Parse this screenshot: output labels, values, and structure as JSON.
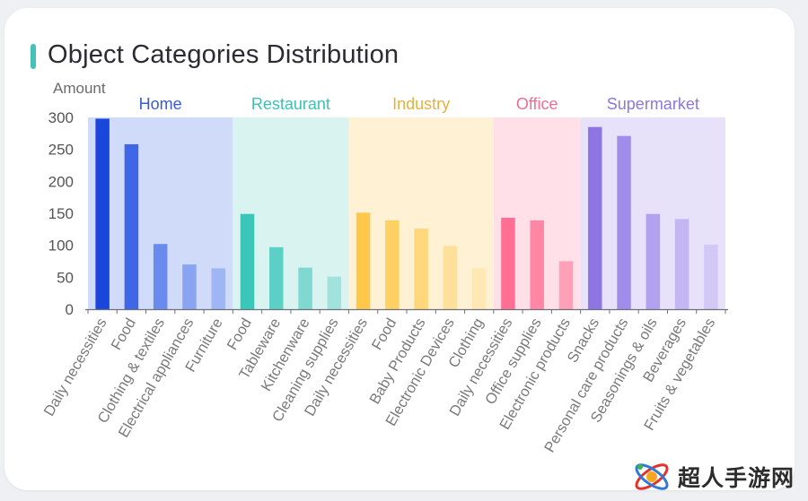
{
  "title": "Object Categories Distribution",
  "watermark": {
    "text": "超人手游网"
  },
  "chart_data": {
    "type": "bar",
    "title": "Object Categories Distribution",
    "ylabel": "Amount",
    "xlabel": "",
    "ylim": [
      0,
      300
    ],
    "yticks": [
      0,
      50,
      100,
      150,
      200,
      250,
      300
    ],
    "grid": false,
    "groups": [
      {
        "name": "Home",
        "label_color": "#3a5bd0",
        "band_color": "#d0dbfa",
        "categories": [
          "Daily necessities",
          "Food",
          "Clothing & textiles",
          "Electrical appliances",
          "Furniture"
        ],
        "values": [
          298,
          258,
          102,
          70,
          64
        ],
        "colors": [
          "#1b46db",
          "#3f66e6",
          "#6a8bee",
          "#8aa4f1",
          "#9fb5f4"
        ]
      },
      {
        "name": "Restaurant",
        "label_color": "#3fbfb4",
        "band_color": "#d9f3f0",
        "categories": [
          "Food",
          "Tableware",
          "Kitchenware",
          "Cleaning supplies"
        ],
        "values": [
          149,
          97,
          65,
          51
        ],
        "colors": [
          "#3cc6b9",
          "#5dd0c5",
          "#7fd9d0",
          "#a1e3dc"
        ]
      },
      {
        "name": "Industry",
        "label_color": "#e5b040",
        "band_color": "#fff1d4",
        "categories": [
          "Daily necessities",
          "Food",
          "Baby Products",
          "Electronic Devices",
          "Clothing"
        ],
        "values": [
          151,
          139,
          126,
          99,
          64
        ],
        "colors": [
          "#ffc84a",
          "#ffd063",
          "#ffd77b",
          "#ffe09a",
          "#ffe8b3"
        ]
      },
      {
        "name": "Office",
        "label_color": "#ef6d92",
        "band_color": "#ffdfe8",
        "categories": [
          "Daily necessities",
          "Office supplies",
          "Electronic products"
        ],
        "values": [
          143,
          139,
          75
        ],
        "colors": [
          "#ff6f93",
          "#ff87a6",
          "#ff9fb8"
        ]
      },
      {
        "name": "Supermarket",
        "label_color": "#8c78d8",
        "band_color": "#e7e1fa",
        "categories": [
          "Snacks",
          "Personal care products",
          "Seasonings & oils",
          "Beverages",
          "Fruits & vegetables"
        ],
        "values": [
          285,
          271,
          149,
          141,
          101
        ],
        "colors": [
          "#8d76e2",
          "#a08cea",
          "#b2a1ef",
          "#c3b6f3",
          "#d2c8f6"
        ]
      }
    ]
  }
}
